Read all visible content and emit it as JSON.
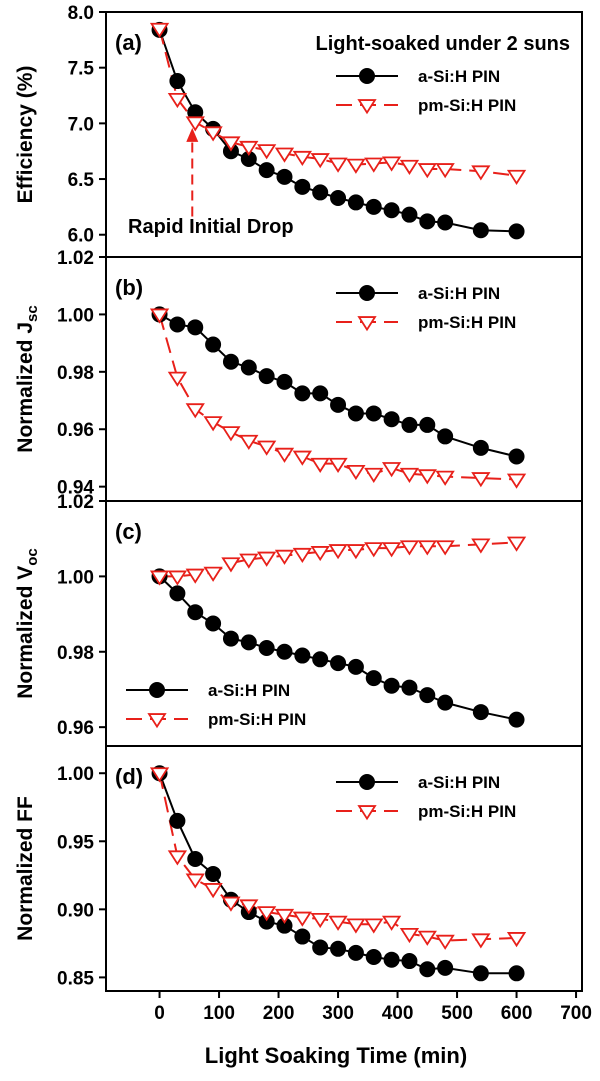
{
  "xaxis": {
    "label": "Light Soaking Time (min)",
    "ticks": [
      0,
      100,
      200,
      300,
      400,
      500,
      600,
      700
    ],
    "range": [
      -90,
      710
    ]
  },
  "colors": {
    "a_si": "#000000",
    "pm_si": "#e8201a"
  },
  "chart_data": [
    {
      "type": "line",
      "panel": "(a)",
      "ylabel": "Efficiency (%)",
      "ylabel_sub": "",
      "ylim": [
        5.8,
        8.0
      ],
      "yticks": [
        "6.0",
        "6.5",
        "7.0",
        "7.5",
        "8.0"
      ],
      "legend_position": "top-right",
      "annotation_title": "Light-soaked under 2 suns",
      "annotation_arrow": "Rapid Initial Drop",
      "x": [
        0,
        30,
        60,
        90,
        120,
        150,
        180,
        210,
        240,
        270,
        300,
        330,
        360,
        390,
        420,
        450,
        480,
        540,
        600
      ],
      "series": [
        {
          "name": "a-Si:H PIN",
          "marker": "filled-circle",
          "style": "solid",
          "values": [
            7.84,
            7.38,
            7.1,
            6.95,
            6.75,
            6.68,
            6.58,
            6.52,
            6.43,
            6.38,
            6.33,
            6.29,
            6.25,
            6.22,
            6.18,
            6.12,
            6.11,
            6.04,
            6.03
          ]
        },
        {
          "name": "pm-Si:H PIN",
          "marker": "open-down-triangle",
          "style": "dashed",
          "values": [
            7.85,
            7.22,
            7.01,
            6.92,
            6.83,
            6.79,
            6.76,
            6.73,
            6.7,
            6.68,
            6.64,
            6.63,
            6.64,
            6.65,
            6.62,
            6.59,
            6.59,
            6.57,
            6.53
          ]
        }
      ]
    },
    {
      "type": "line",
      "panel": "(b)",
      "ylabel": "Normalized J",
      "ylabel_sub": "sc",
      "ylim": [
        0.935,
        1.02
      ],
      "yticks": [
        "0.94",
        "0.96",
        "0.98",
        "1.00",
        "1.02"
      ],
      "legend_position": "top-right",
      "x": [
        0,
        30,
        60,
        90,
        120,
        150,
        180,
        210,
        240,
        270,
        300,
        330,
        360,
        390,
        420,
        450,
        480,
        540,
        600
      ],
      "series": [
        {
          "name": "a-Si:H PIN",
          "marker": "filled-circle",
          "style": "solid",
          "values": [
            1.0,
            0.9965,
            0.9955,
            0.9895,
            0.9835,
            0.9815,
            0.9785,
            0.9765,
            0.9725,
            0.9725,
            0.9685,
            0.9655,
            0.9655,
            0.9635,
            0.9615,
            0.9615,
            0.9575,
            0.9535,
            0.9505
          ]
        },
        {
          "name": "pm-Si:H PIN",
          "marker": "open-down-triangle",
          "style": "dashed",
          "values": [
            1.0,
            0.978,
            0.967,
            0.9625,
            0.959,
            0.956,
            0.954,
            0.9515,
            0.9505,
            0.948,
            0.948,
            0.9455,
            0.9445,
            0.9465,
            0.9445,
            0.944,
            0.9435,
            0.943,
            0.9425
          ]
        }
      ]
    },
    {
      "type": "line",
      "panel": "(c)",
      "ylabel": "Normalized V",
      "ylabel_sub": "oc",
      "ylim": [
        0.955,
        1.02
      ],
      "yticks": [
        "0.96",
        "0.98",
        "1.00",
        "1.02"
      ],
      "legend_position": "bottom-left",
      "x": [
        0,
        30,
        60,
        90,
        120,
        150,
        180,
        210,
        240,
        270,
        300,
        330,
        360,
        390,
        420,
        450,
        480,
        540,
        600
      ],
      "series": [
        {
          "name": "a-Si:H PIN",
          "marker": "filled-circle",
          "style": "solid",
          "values": [
            1.0,
            0.9955,
            0.9905,
            0.9875,
            0.9835,
            0.9825,
            0.981,
            0.98,
            0.979,
            0.978,
            0.977,
            0.976,
            0.973,
            0.971,
            0.9705,
            0.9685,
            0.9665,
            0.964,
            0.962
          ]
        },
        {
          "name": "pm-Si:H PIN",
          "marker": "open-down-triangle",
          "style": "dashed",
          "values": [
            1.0,
            1.0,
            1.0005,
            1.001,
            1.0035,
            1.0045,
            1.005,
            1.0055,
            1.006,
            1.0065,
            1.007,
            1.007,
            1.0075,
            1.0075,
            1.008,
            1.008,
            1.008,
            1.0085,
            1.009
          ]
        }
      ]
    },
    {
      "type": "line",
      "panel": "(d)",
      "ylabel": "Normalized FF",
      "ylabel_sub": "",
      "ylim": [
        0.84,
        1.02
      ],
      "yticks": [
        "0.85",
        "0.90",
        "0.95",
        "1.00"
      ],
      "legend_position": "top-right",
      "x": [
        0,
        30,
        60,
        90,
        120,
        150,
        180,
        210,
        240,
        270,
        300,
        330,
        360,
        390,
        420,
        450,
        480,
        540,
        600
      ],
      "series": [
        {
          "name": "a-Si:H PIN",
          "marker": "filled-circle",
          "style": "solid",
          "values": [
            1.0,
            0.965,
            0.937,
            0.926,
            0.907,
            0.898,
            0.891,
            0.888,
            0.88,
            0.872,
            0.871,
            0.868,
            0.865,
            0.863,
            0.862,
            0.856,
            0.857,
            0.853,
            0.853
          ]
        },
        {
          "name": "pm-Si:H PIN",
          "marker": "open-down-triangle",
          "style": "dashed",
          "values": [
            1.0,
            0.939,
            0.922,
            0.915,
            0.905,
            0.903,
            0.898,
            0.896,
            0.894,
            0.893,
            0.891,
            0.889,
            0.889,
            0.891,
            0.882,
            0.88,
            0.877,
            0.878,
            0.879
          ]
        }
      ]
    }
  ]
}
